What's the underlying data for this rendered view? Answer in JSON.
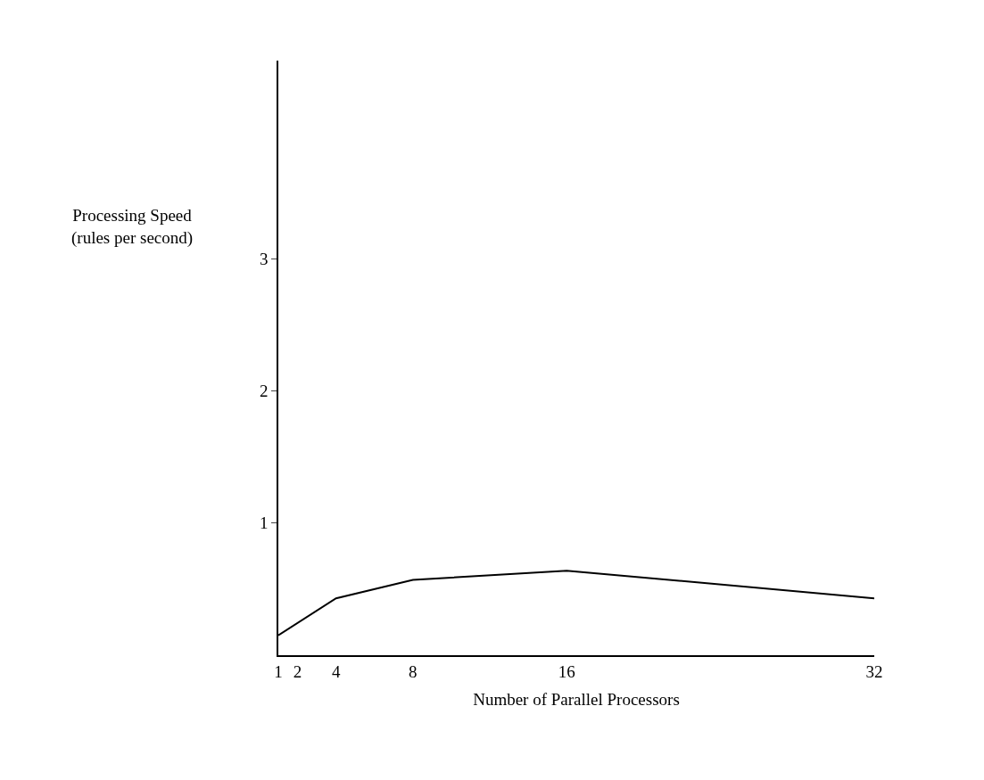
{
  "chart_data": {
    "type": "line",
    "xlabel": "Number of Parallel Processors",
    "ylabel": "Processing Speed\n(rules per second)",
    "x": [
      1,
      4,
      8,
      16,
      32
    ],
    "series": [
      {
        "color": "#000000",
        "values": [
          0.15,
          0.43,
          0.57,
          0.64,
          0.43
        ]
      }
    ],
    "xlim": [
      1,
      32
    ],
    "xticks": [
      1,
      2,
      4,
      8,
      16,
      32
    ],
    "ylim": [
      0,
      4.5
    ],
    "yticks": [
      1,
      2,
      3
    ],
    "legend": false,
    "marker": "none",
    "line_style": "solid"
  }
}
